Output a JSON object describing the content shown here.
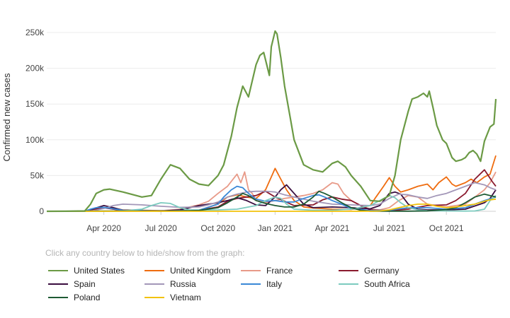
{
  "chart_data": {
    "type": "line",
    "title": "",
    "xlabel": "",
    "ylabel": "Confirmed new cases",
    "ylim": [
      0,
      250000
    ],
    "yticks": [
      {
        "value": 0,
        "label": "0"
      },
      {
        "value": 50000,
        "label": "50k"
      },
      {
        "value": 100000,
        "label": "100k"
      },
      {
        "value": 150000,
        "label": "150k"
      },
      {
        "value": 200000,
        "label": "200k"
      },
      {
        "value": 250000,
        "label": "250k"
      }
    ],
    "x_unit": "months since 2020-01-01",
    "xlim": [
      0,
      23.6
    ],
    "xticks": [
      {
        "value": 3,
        "label": "Apr 2020"
      },
      {
        "value": 6,
        "label": "Jul 2020"
      },
      {
        "value": 9,
        "label": "Oct 2020"
      },
      {
        "value": 12,
        "label": "Jan 2021"
      },
      {
        "value": 15,
        "label": "Apr 2021"
      },
      {
        "value": 18,
        "label": "Jul 2021"
      },
      {
        "value": 21,
        "label": "Oct 2021"
      }
    ],
    "series": [
      {
        "name": "United States",
        "color": "#6b9a45",
        "x": [
          0,
          1,
          2,
          2.3,
          2.6,
          3,
          3.3,
          4,
          5,
          5.5,
          6,
          6.5,
          7,
          7.5,
          8,
          8.5,
          9,
          9.3,
          9.7,
          10,
          10.3,
          10.6,
          11,
          11.2,
          11.4,
          11.7,
          11.8,
          12,
          12.1,
          12.3,
          12.5,
          12.8,
          13,
          13.5,
          14,
          14.5,
          15,
          15.3,
          15.7,
          16,
          16.5,
          17,
          17.5,
          18,
          18.3,
          18.6,
          19,
          19.2,
          19.5,
          19.8,
          20,
          20.1,
          20.3,
          20.5,
          20.8,
          21,
          21.3,
          21.5,
          21.8,
          22,
          22.2,
          22.4,
          22.6,
          22.8,
          23,
          23.3,
          23.5,
          23.6
        ],
        "y": [
          0,
          100,
          500,
          10000,
          25000,
          30000,
          31000,
          27000,
          20000,
          22000,
          45000,
          65000,
          60000,
          45000,
          38000,
          36000,
          50000,
          65000,
          105000,
          145000,
          175000,
          160000,
          205000,
          218000,
          222000,
          190000,
          230000,
          252000,
          248000,
          215000,
          175000,
          130000,
          100000,
          65000,
          58000,
          55000,
          67000,
          70000,
          62000,
          50000,
          35000,
          15000,
          14000,
          22000,
          50000,
          100000,
          140000,
          157000,
          160000,
          165000,
          160000,
          168000,
          145000,
          120000,
          100000,
          95000,
          75000,
          70000,
          72000,
          75000,
          82000,
          85000,
          80000,
          70000,
          98000,
          118000,
          122000,
          157000
        ]
      },
      {
        "name": "United Kingdom",
        "color": "#ef6c0f",
        "x": [
          0,
          2,
          2.5,
          3,
          3.5,
          4,
          6,
          8,
          9,
          9.5,
          10,
          10.5,
          11,
          11.5,
          12,
          12.3,
          12.6,
          13,
          13.5,
          14,
          15,
          16,
          17,
          17.3,
          17.7,
          18,
          18.3,
          18.6,
          19,
          19.5,
          20,
          20.3,
          20.6,
          21,
          21.3,
          21.5,
          22,
          22.3,
          22.6,
          23,
          23.3,
          23.6
        ],
        "y": [
          0,
          0,
          3000,
          5000,
          4000,
          2000,
          800,
          1500,
          10000,
          20000,
          23000,
          20000,
          18000,
          30000,
          60000,
          45000,
          30000,
          15000,
          6000,
          4500,
          3000,
          2500,
          8000,
          20000,
          35000,
          47000,
          35000,
          27000,
          30000,
          35000,
          38000,
          30000,
          40000,
          48000,
          38000,
          35000,
          40000,
          45000,
          40000,
          48000,
          52000,
          78000
        ]
      },
      {
        "name": "France",
        "color": "#e89a88",
        "x": [
          0,
          2,
          2.5,
          3,
          3.5,
          4,
          5,
          6,
          7,
          8,
          8.5,
          9,
          9.5,
          10,
          10.2,
          10.4,
          10.6,
          10.8,
          11,
          11.5,
          12,
          12.5,
          13,
          13.5,
          14,
          14.5,
          15,
          15.3,
          15.6,
          16,
          16.5,
          17,
          17.5,
          18,
          18.5,
          19,
          19.5,
          20,
          20.5,
          21,
          21.5,
          22,
          22.5,
          23,
          23.3,
          23.6
        ],
        "y": [
          0,
          0,
          3000,
          5000,
          3000,
          1000,
          600,
          700,
          3000,
          9000,
          14000,
          25000,
          35000,
          52000,
          40000,
          55000,
          30000,
          25000,
          15000,
          12000,
          15000,
          18000,
          20000,
          22000,
          25000,
          30000,
          40000,
          38000,
          25000,
          15000,
          8000,
          3000,
          2000,
          5000,
          15000,
          22000,
          20000,
          10000,
          8000,
          6000,
          8000,
          10000,
          20000,
          30000,
          40000,
          55000
        ]
      },
      {
        "name": "Germany",
        "color": "#8a1a2e",
        "x": [
          0,
          2,
          2.5,
          3,
          3.5,
          4,
          6,
          8,
          9,
          9.5,
          10,
          10.5,
          11,
          11.5,
          12,
          12.5,
          13,
          14,
          14.5,
          15,
          15.5,
          16,
          16.5,
          17,
          18,
          19,
          20,
          21,
          21.5,
          22,
          22.5,
          23,
          23.2,
          23.4,
          23.6
        ],
        "y": [
          0,
          0,
          3000,
          5000,
          3000,
          1000,
          500,
          1500,
          6000,
          14000,
          18000,
          20000,
          22000,
          28000,
          20000,
          14000,
          8000,
          9000,
          16000,
          20000,
          17000,
          15000,
          8000,
          2000,
          700,
          3000,
          8000,
          9000,
          15000,
          25000,
          45000,
          58000,
          50000,
          42000,
          35000
        ]
      },
      {
        "name": "Spain",
        "color": "#3a0d3f",
        "x": [
          0,
          2,
          2.5,
          3,
          3.5,
          4,
          6,
          7,
          8,
          9,
          9.5,
          10,
          10.5,
          11,
          11.5,
          12,
          12.3,
          12.6,
          13,
          13.5,
          14,
          15,
          16,
          17,
          17.5,
          18,
          18.3,
          18.6,
          19,
          19.5,
          20,
          21,
          22,
          23,
          23.3,
          23.6
        ],
        "y": [
          0,
          0,
          4000,
          8000,
          5000,
          1500,
          300,
          2000,
          8000,
          12000,
          15000,
          19000,
          15000,
          9000,
          8000,
          20000,
          30000,
          37000,
          25000,
          10000,
          5000,
          6000,
          5000,
          3500,
          8000,
          25000,
          27000,
          24000,
          10000,
          3000,
          2000,
          2000,
          3000,
          12000,
          18000,
          30000
        ]
      },
      {
        "name": "Russia",
        "color": "#a397b8",
        "x": [
          0,
          2,
          2.5,
          3,
          3.5,
          4,
          5,
          6,
          7,
          8,
          8.5,
          9,
          9.5,
          10,
          10.5,
          11,
          11.5,
          12,
          12.5,
          13,
          14,
          15,
          16,
          17,
          17.5,
          18,
          18.5,
          19,
          19.5,
          20,
          20.5,
          21,
          21.5,
          22,
          22.5,
          23,
          23.3,
          23.6
        ],
        "y": [
          0,
          0,
          1000,
          4000,
          8000,
          10000,
          9000,
          7000,
          5500,
          6000,
          9000,
          13000,
          20000,
          24000,
          27000,
          28000,
          28000,
          27000,
          23000,
          20000,
          14000,
          10000,
          9000,
          8000,
          10000,
          18000,
          24000,
          23000,
          20000,
          18000,
          22000,
          25000,
          30000,
          35000,
          40000,
          37000,
          33000,
          30000
        ]
      },
      {
        "name": "Italy",
        "color": "#3a88d6",
        "x": [
          0,
          2,
          2.3,
          2.6,
          3,
          3.5,
          4,
          6,
          8,
          9,
          9.3,
          9.7,
          10,
          10.3,
          10.6,
          11,
          11.5,
          12,
          12.5,
          13,
          13.5,
          14,
          14.3,
          14.6,
          15,
          15.5,
          16,
          17,
          18,
          19,
          20,
          21,
          22,
          22.5,
          23,
          23.6
        ],
        "y": [
          0,
          0,
          3000,
          5000,
          5500,
          3500,
          1500,
          300,
          1500,
          10000,
          20000,
          30000,
          35000,
          33000,
          25000,
          17000,
          14000,
          15000,
          13000,
          13000,
          18000,
          22000,
          23000,
          20000,
          15000,
          10000,
          4000,
          1000,
          1500,
          5000,
          5000,
          3000,
          5000,
          10000,
          15000,
          20000
        ]
      },
      {
        "name": "South Africa",
        "color": "#7ccbbf",
        "x": [
          0,
          3,
          4,
          5,
          5.5,
          6,
          6.5,
          7,
          7.5,
          8,
          9,
          10,
          11,
          11.5,
          12,
          12.3,
          12.6,
          13,
          14,
          15,
          16,
          17,
          17.5,
          18,
          18.3,
          18.6,
          19,
          19.5,
          20,
          21,
          22,
          22.5,
          23,
          23.3,
          23.6
        ],
        "y": [
          0,
          0,
          500,
          3000,
          8000,
          12000,
          11000,
          5000,
          2000,
          1800,
          2000,
          3000,
          8000,
          15000,
          20000,
          18000,
          10000,
          3000,
          1500,
          1500,
          3000,
          8000,
          15000,
          22000,
          19000,
          12000,
          5000,
          2000,
          1000,
          500,
          300,
          500,
          3000,
          15000,
          22000
        ]
      },
      {
        "name": "Poland",
        "color": "#1e5a34",
        "x": [
          0,
          3,
          5,
          7,
          8,
          9,
          9.5,
          10,
          10.3,
          10.6,
          11,
          11.5,
          12,
          12.5,
          13,
          13.5,
          14,
          14.3,
          14.6,
          15,
          15.5,
          16,
          16.5,
          17,
          18,
          19,
          20,
          21,
          21.5,
          22,
          22.5,
          23,
          23.3,
          23.6
        ],
        "y": [
          0,
          300,
          400,
          600,
          1200,
          5000,
          12000,
          20000,
          25000,
          22000,
          15000,
          11000,
          8000,
          6000,
          6000,
          10000,
          20000,
          28000,
          25000,
          20000,
          12000,
          5000,
          1500,
          200,
          100,
          200,
          500,
          2500,
          5000,
          12000,
          20000,
          24000,
          22000,
          20000
        ]
      },
      {
        "name": "Vietnam",
        "color": "#f2c20b",
        "x": [
          0,
          16,
          17,
          17.5,
          18,
          18.5,
          19,
          19.5,
          20,
          20.5,
          21,
          21.5,
          22,
          22.5,
          23,
          23.3,
          23.6
        ],
        "y": [
          0,
          0,
          100,
          500,
          2000,
          5000,
          8000,
          10000,
          10000,
          7000,
          5000,
          6000,
          8000,
          10000,
          14000,
          16000,
          17000
        ]
      }
    ]
  },
  "hint": "Click any country below to hide/show from the graph:"
}
